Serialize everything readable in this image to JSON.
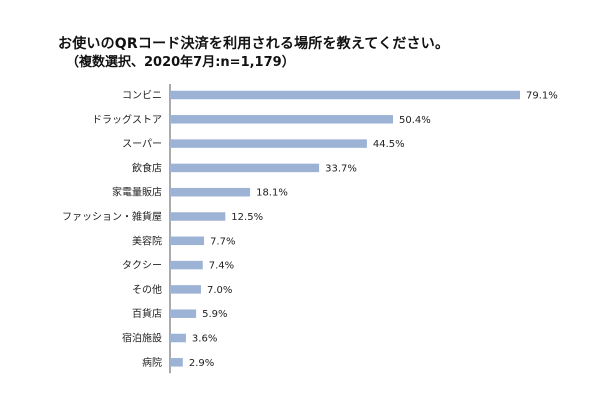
{
  "chart_data": {
    "type": "bar",
    "orientation": "horizontal",
    "title": "お使いのQRコード決済を利用される場所を教えてください。",
    "subtitle": "（複数選択、2020年7月:n=1,179）",
    "categories": [
      "コンビニ",
      "ドラッグストア",
      "スーパー",
      "飲食店",
      "家電量販店",
      "ファッション・雑貨屋",
      "美容院",
      "タクシー",
      "その他",
      "百貨店",
      "宿泊施設",
      "病院"
    ],
    "values": [
      79.1,
      50.4,
      44.5,
      33.7,
      18.1,
      12.5,
      7.7,
      7.4,
      7.0,
      5.9,
      3.6,
      2.9
    ],
    "value_labels": [
      "79.1%",
      "50.4%",
      "44.5%",
      "33.7%",
      "18.1%",
      "12.5%",
      "7.7%",
      "7.4%",
      "7.0%",
      "5.9%",
      "3.6%",
      "2.9%"
    ],
    "xlim": [
      0,
      100
    ],
    "grid": false,
    "bar_color": "#9db3d6"
  }
}
